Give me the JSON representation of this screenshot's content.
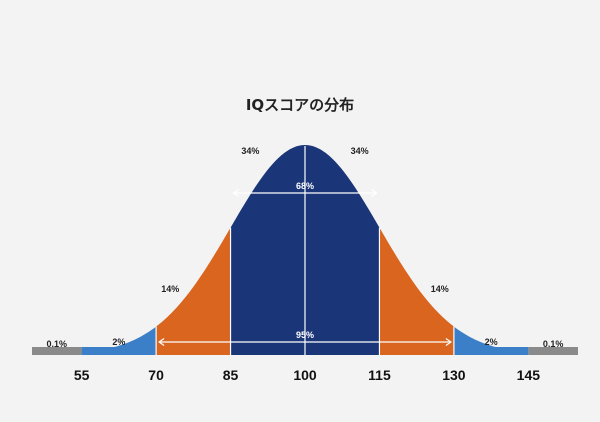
{
  "chart_data": {
    "type": "area",
    "title": "IQスコアの分布",
    "x_ticks": [
      55,
      70,
      85,
      100,
      115,
      130,
      145
    ],
    "x_range": [
      45,
      155
    ],
    "mean": 100,
    "sd": 15,
    "bands": [
      {
        "from": 45,
        "to": 55,
        "label": "0.1%",
        "color": "#8a8a8a"
      },
      {
        "from": 55,
        "to": 70,
        "label": "2%",
        "color": "#3a7fc8"
      },
      {
        "from": 70,
        "to": 85,
        "label": "14%",
        "color": "#d9651f"
      },
      {
        "from": 85,
        "to": 100,
        "label": "34%",
        "color": "#1a3578"
      },
      {
        "from": 100,
        "to": 115,
        "label": "34%",
        "color": "#1a3578"
      },
      {
        "from": 115,
        "to": 130,
        "label": "14%",
        "color": "#d9651f"
      },
      {
        "from": 130,
        "to": 145,
        "label": "2%",
        "color": "#3a7fc8"
      },
      {
        "from": 145,
        "to": 155,
        "label": "0.1%",
        "color": "#8a8a8a"
      }
    ],
    "spans": [
      {
        "from": 85,
        "to": 115,
        "label": "68%"
      },
      {
        "from": 70,
        "to": 130,
        "label": "95%"
      }
    ]
  }
}
